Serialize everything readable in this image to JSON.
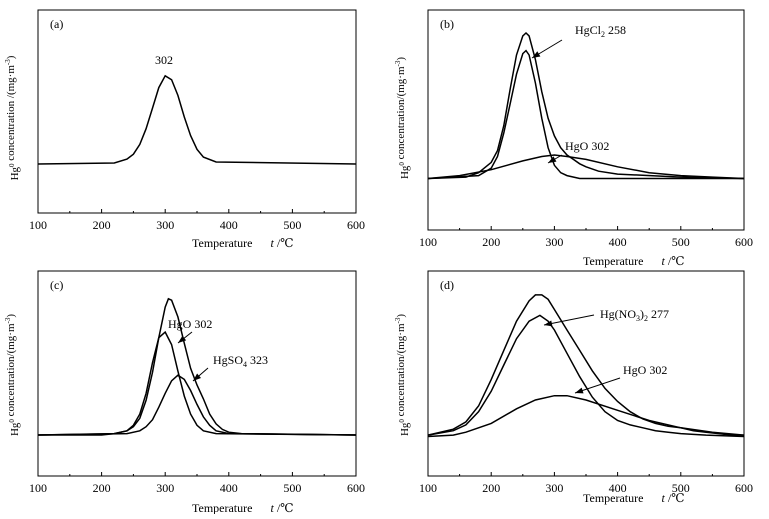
{
  "chart_data": [
    {
      "type": "line",
      "panel_label": "(a)",
      "xlabel": "Temperature",
      "xunit": "t /℃",
      "ylabel_main": "Hg",
      "ylabel_sup": "0",
      "ylabel_rest": " concentration /(mg·m",
      "ylabel_sup2": "-3",
      "ylabel_end": ")",
      "xlim": [
        100,
        600
      ],
      "xticks": [
        "100",
        "200",
        "300",
        "400",
        "500",
        "600"
      ],
      "series": [
        {
          "x": [
            100,
            220,
            240,
            250,
            260,
            270,
            280,
            290,
            300,
            310,
            320,
            330,
            340,
            350,
            360,
            380,
            600
          ],
          "y": [
            0,
            0.01,
            0.05,
            0.1,
            0.2,
            0.36,
            0.57,
            0.78,
            0.9,
            0.86,
            0.7,
            0.48,
            0.29,
            0.15,
            0.07,
            0.02,
            0
          ]
        }
      ],
      "annotations": [
        {
          "text": "302",
          "x": 302,
          "y": 0.9,
          "arrow": false
        }
      ]
    },
    {
      "type": "line",
      "panel_label": "(b)",
      "xlabel": "Temperature",
      "xunit": "t /℃",
      "ylabel_main": "Hg",
      "ylabel_sup": "0",
      "ylabel_rest": " concentration/(mg·m",
      "ylabel_sup2": "-3",
      "ylabel_end": ")",
      "xlim": [
        100,
        600
      ],
      "xticks": [
        "100",
        "200",
        "300",
        "400",
        "500",
        "600"
      ],
      "series": [
        {
          "x": [
            100,
            160,
            180,
            200,
            210,
            220,
            230,
            240,
            250,
            255,
            260,
            270,
            280,
            290,
            300,
            310,
            320,
            330,
            340,
            350,
            370,
            400,
            500,
            600
          ],
          "y": [
            0.01,
            0.02,
            0.05,
            0.12,
            0.2,
            0.37,
            0.62,
            0.85,
            0.98,
            1.0,
            0.98,
            0.82,
            0.6,
            0.42,
            0.3,
            0.22,
            0.17,
            0.14,
            0.11,
            0.09,
            0.06,
            0.04,
            0.02,
            0.01
          ]
        },
        {
          "x": [
            100,
            180,
            200,
            210,
            220,
            230,
            240,
            250,
            255,
            260,
            270,
            280,
            290,
            300,
            310,
            320,
            340,
            600
          ],
          "y": [
            0.01,
            0.03,
            0.08,
            0.16,
            0.32,
            0.52,
            0.72,
            0.86,
            0.88,
            0.85,
            0.66,
            0.42,
            0.22,
            0.1,
            0.05,
            0.03,
            0.01,
            0.01
          ]
        },
        {
          "x": [
            100,
            150,
            200,
            250,
            280,
            300,
            320,
            350,
            400,
            450,
            500,
            550,
            600
          ],
          "y": [
            0.01,
            0.03,
            0.07,
            0.13,
            0.16,
            0.17,
            0.16,
            0.14,
            0.09,
            0.05,
            0.03,
            0.02,
            0.01
          ]
        }
      ],
      "annotations": [
        {
          "text": "HgCl",
          "sub": "2",
          "value": " 258",
          "x": 258,
          "y": 0.98,
          "arrow": true
        },
        {
          "text": "HgO 302",
          "x": 302,
          "y": 0.17,
          "arrow": true
        }
      ]
    },
    {
      "type": "line",
      "panel_label": "(c)",
      "xlabel": "Temperature",
      "xunit": "t /℃",
      "ylabel_main": "Hg",
      "ylabel_sup": "0",
      "ylabel_rest": " concentration/(mg·m",
      "ylabel_sup2": "-3",
      "ylabel_end": ")",
      "xlim": [
        100,
        600
      ],
      "xticks": [
        "100",
        "200",
        "300",
        "400",
        "500",
        "600"
      ],
      "series": [
        {
          "x": [
            100,
            200,
            220,
            240,
            250,
            260,
            270,
            280,
            290,
            300,
            305,
            310,
            320,
            330,
            340,
            350,
            360,
            370,
            380,
            390,
            400,
            420,
            600
          ],
          "y": [
            0,
            0,
            0.01,
            0.03,
            0.06,
            0.12,
            0.25,
            0.45,
            0.7,
            0.92,
            0.98,
            0.97,
            0.85,
            0.66,
            0.48,
            0.36,
            0.26,
            0.15,
            0.08,
            0.04,
            0.02,
            0.01,
            0
          ]
        },
        {
          "x": [
            100,
            220,
            240,
            250,
            260,
            270,
            280,
            290,
            300,
            310,
            320,
            330,
            340,
            350,
            360,
            380,
            600
          ],
          "y": [
            0,
            0.01,
            0.03,
            0.07,
            0.15,
            0.3,
            0.52,
            0.7,
            0.74,
            0.65,
            0.46,
            0.28,
            0.15,
            0.07,
            0.03,
            0.01,
            0
          ]
        },
        {
          "x": [
            100,
            240,
            260,
            270,
            280,
            290,
            300,
            310,
            320,
            330,
            340,
            350,
            360,
            370,
            380,
            400,
            600
          ],
          "y": [
            0,
            0.01,
            0.03,
            0.06,
            0.11,
            0.2,
            0.3,
            0.39,
            0.43,
            0.4,
            0.32,
            0.22,
            0.13,
            0.07,
            0.03,
            0.01,
            0
          ]
        }
      ],
      "annotations": [
        {
          "text": "HgO 302",
          "x": 302,
          "y": 0.74,
          "arrow": true
        },
        {
          "text": "HgSO",
          "sub": "4",
          "value": " 323",
          "x": 323,
          "y": 0.43,
          "arrow": true
        }
      ]
    },
    {
      "type": "line",
      "panel_label": "(d)",
      "xlabel": "Temperature",
      "xunit": "t /℃",
      "ylabel_main": "Hg",
      "ylabel_sup": "0",
      "ylabel_rest": " concentration/(mg·m",
      "ylabel_sup2": "-3",
      "ylabel_end": ")",
      "xlim": [
        100,
        600
      ],
      "xticks": [
        "100",
        "200",
        "300",
        "400",
        "500",
        "600"
      ],
      "series": [
        {
          "x": [
            100,
            140,
            160,
            180,
            200,
            220,
            240,
            260,
            270,
            280,
            290,
            300,
            320,
            340,
            360,
            380,
            400,
            420,
            440,
            460,
            480,
            500,
            520,
            540,
            560,
            580,
            600
          ],
          "y": [
            0.02,
            0.06,
            0.11,
            0.22,
            0.4,
            0.6,
            0.8,
            0.94,
            0.98,
            0.98,
            0.95,
            0.88,
            0.74,
            0.6,
            0.46,
            0.34,
            0.25,
            0.18,
            0.13,
            0.1,
            0.08,
            0.07,
            0.05,
            0.04,
            0.03,
            0.02,
            0.02
          ]
        },
        {
          "x": [
            100,
            140,
            160,
            180,
            200,
            220,
            240,
            260,
            277,
            290,
            300,
            320,
            340,
            360,
            380,
            400,
            420,
            440,
            460,
            480,
            500,
            540,
            600
          ],
          "y": [
            0.02,
            0.05,
            0.09,
            0.18,
            0.32,
            0.5,
            0.68,
            0.8,
            0.84,
            0.8,
            0.74,
            0.58,
            0.42,
            0.28,
            0.18,
            0.12,
            0.09,
            0.07,
            0.05,
            0.04,
            0.03,
            0.02,
            0.01
          ]
        },
        {
          "x": [
            100,
            140,
            160,
            200,
            240,
            270,
            300,
            320,
            350,
            400,
            450,
            500,
            550,
            600
          ],
          "y": [
            0.01,
            0.02,
            0.04,
            0.1,
            0.2,
            0.26,
            0.29,
            0.29,
            0.26,
            0.19,
            0.12,
            0.07,
            0.04,
            0.02
          ]
        }
      ],
      "annotations": [
        {
          "text": "Hg(NO",
          "sub": "3",
          "after_sub": ")",
          "sub2": "2",
          "value": " 277",
          "x": 277,
          "y": 0.84,
          "arrow": true
        },
        {
          "text": "HgO 302",
          "x": 302,
          "y": 0.29,
          "arrow": true
        }
      ]
    }
  ]
}
